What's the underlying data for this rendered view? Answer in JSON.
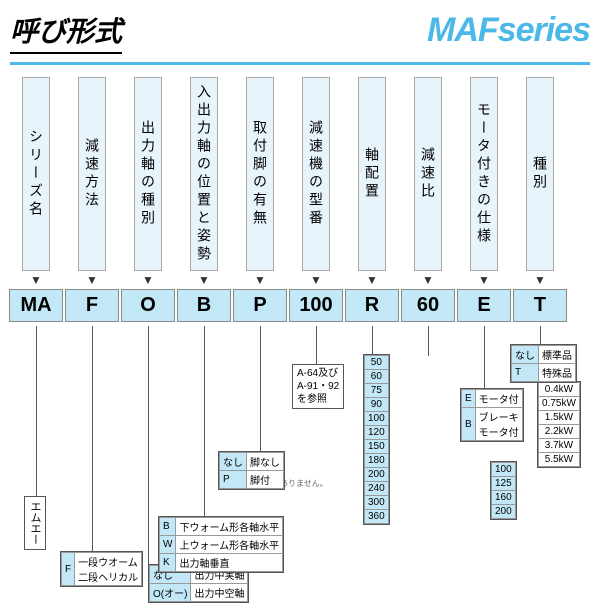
{
  "header": {
    "title": "呼び形式",
    "series": "MAFseries"
  },
  "columns": [
    {
      "label": "シリーズ名",
      "code": "MA"
    },
    {
      "label": "減速方法",
      "code": "F"
    },
    {
      "label": "出力軸の種別",
      "code": "O"
    },
    {
      "label": "入出力軸の位置と姿勢",
      "code": "B"
    },
    {
      "label": "取付脚の有無",
      "code": "P"
    },
    {
      "label": "減速機の型番",
      "code": "100"
    },
    {
      "label": "軸配置",
      "code": "R"
    },
    {
      "label": "減速比",
      "code": "60"
    },
    {
      "label": "モータ付きの仕様",
      "code": "E"
    },
    {
      "label": "種別",
      "code": "T"
    }
  ],
  "detail": {
    "ma": "エムエー",
    "f_rows": [
      [
        "F",
        "一段ウオーム\n二段ヘリカル"
      ]
    ],
    "o_rows": [
      [
        "なし",
        "出力中実軸"
      ],
      [
        "O(オー)",
        "出力中空軸"
      ]
    ],
    "b_rows": [
      [
        "B",
        "下ウォーム形各軸水平"
      ],
      [
        "W",
        "上ウォーム形各軸水平"
      ],
      [
        "K",
        "出力軸垂直"
      ]
    ],
    "b_note": "※K形は取付脚はありません。",
    "p_rows": [
      [
        "なし",
        "脚なし"
      ],
      [
        "P",
        "脚付"
      ]
    ],
    "model_ref": "A-64及び\nA-91・92\nを参照",
    "ratios": [
      "50",
      "60",
      "75",
      "90",
      "100",
      "120",
      "150",
      "180",
      "200",
      "240",
      "300",
      "360"
    ],
    "e_rows": [
      [
        "E",
        "モータ付"
      ],
      [
        "B",
        "ブレーキ\nモータ付"
      ]
    ],
    "power": [
      "0.4kW",
      "0.75kW",
      "1.5kW",
      "2.2kW",
      "3.7kW",
      "5.5kW"
    ],
    "sizes": [
      "100",
      "125",
      "160",
      "200"
    ],
    "t_rows": [
      [
        "なし",
        "標準品"
      ],
      [
        "T",
        "特殊品"
      ]
    ]
  },
  "colors": {
    "accent": "#4bb8e8",
    "lightblue": "#c2e8f7",
    "palegrey": "#e8f4fb"
  }
}
